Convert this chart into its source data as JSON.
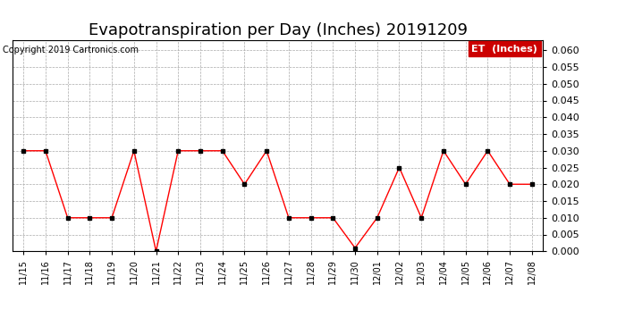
{
  "title": "Evapotranspiration per Day (Inches) 20191209",
  "copyright": "Copyright 2019 Cartronics.com",
  "legend_label": "ET  (Inches)",
  "dates": [
    "11/15",
    "11/16",
    "11/17",
    "11/18",
    "11/19",
    "11/20",
    "11/21",
    "11/22",
    "11/23",
    "11/24",
    "11/25",
    "11/26",
    "11/27",
    "11/28",
    "11/29",
    "11/30",
    "12/01",
    "12/02",
    "12/03",
    "12/04",
    "12/05",
    "12/06",
    "12/07",
    "12/08"
  ],
  "values": [
    0.03,
    0.03,
    0.01,
    0.01,
    0.01,
    0.03,
    0.0,
    0.03,
    0.03,
    0.03,
    0.02,
    0.03,
    0.01,
    0.01,
    0.01,
    0.001,
    0.01,
    0.025,
    0.01,
    0.03,
    0.02,
    0.03,
    0.02,
    0.02
  ],
  "line_color": "red",
  "marker_color": "black",
  "background_color": "white",
  "grid_color": "#aaaaaa",
  "ylim": [
    0.0,
    0.063
  ],
  "yticks": [
    0.0,
    0.005,
    0.01,
    0.015,
    0.02,
    0.025,
    0.03,
    0.035,
    0.04,
    0.045,
    0.05,
    0.055,
    0.06
  ],
  "title_fontsize": 13,
  "copyright_fontsize": 7,
  "tick_fontsize": 8,
  "xtick_fontsize": 7,
  "legend_bg": "#cc0000",
  "legend_fg": "white"
}
